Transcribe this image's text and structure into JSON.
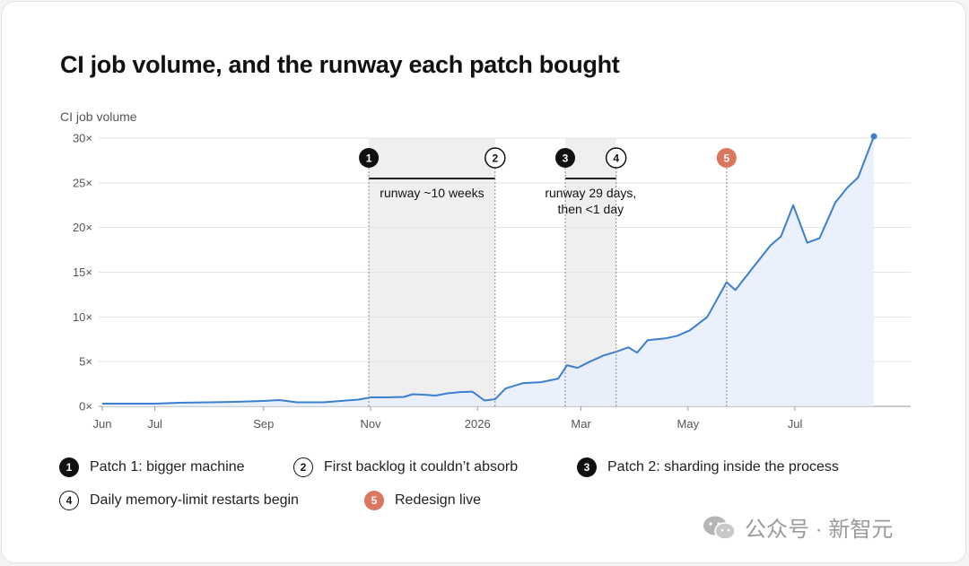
{
  "title": "CI job volume, and the runway each patch bought",
  "colors": {
    "line": "#3b7fd0",
    "area": "#e6effb",
    "shade": "#efefef",
    "accent": "#d9775f",
    "dark": "#111111"
  },
  "chart_data": {
    "type": "area",
    "ylabel": "CI job volume",
    "yticks": [
      "0×",
      "5×",
      "10×",
      "15×",
      "20×",
      "25×",
      "30×"
    ],
    "ylim": [
      0,
      30
    ],
    "xticks": [
      "Jun",
      "Jul",
      "Sep",
      "Nov",
      "2026",
      "Mar",
      "May",
      "Jul"
    ],
    "x_domain": [
      "2025-06-01",
      "2026-08-15"
    ],
    "grid": true,
    "series": [
      {
        "points": [
          [
            "2025-06-01",
            0.3
          ],
          [
            "2025-06-15",
            0.3
          ],
          [
            "2025-07-01",
            0.3
          ],
          [
            "2025-07-15",
            0.4
          ],
          [
            "2025-08-01",
            0.45
          ],
          [
            "2025-08-15",
            0.5
          ],
          [
            "2025-09-01",
            0.6
          ],
          [
            "2025-09-10",
            0.7
          ],
          [
            "2025-09-20",
            0.45
          ],
          [
            "2025-10-05",
            0.45
          ],
          [
            "2025-10-15",
            0.6
          ],
          [
            "2025-10-25",
            0.75
          ],
          [
            "2025-11-01",
            1.0
          ],
          [
            "2025-11-10",
            1.0
          ],
          [
            "2025-11-20",
            1.05
          ],
          [
            "2025-11-25",
            1.35
          ],
          [
            "2025-12-01",
            1.3
          ],
          [
            "2025-12-08",
            1.2
          ],
          [
            "2025-12-15",
            1.45
          ],
          [
            "2025-12-22",
            1.6
          ],
          [
            "2025-12-29",
            1.65
          ],
          [
            "2026-01-05",
            0.65
          ],
          [
            "2026-01-11",
            0.8
          ],
          [
            "2026-01-17",
            2.0
          ],
          [
            "2026-01-27",
            2.6
          ],
          [
            "2026-02-06",
            2.7
          ],
          [
            "2026-02-16",
            3.1
          ],
          [
            "2026-02-21",
            4.6
          ],
          [
            "2026-02-27",
            4.3
          ],
          [
            "2026-03-06",
            5.0
          ],
          [
            "2026-03-14",
            5.7
          ],
          [
            "2026-03-21",
            6.1
          ],
          [
            "2026-03-28",
            6.6
          ],
          [
            "2026-04-02",
            6.0
          ],
          [
            "2026-04-08",
            7.4
          ],
          [
            "2026-04-18",
            7.6
          ],
          [
            "2026-04-25",
            7.9
          ],
          [
            "2026-05-02",
            8.5
          ],
          [
            "2026-05-12",
            10.0
          ],
          [
            "2026-05-23",
            13.9
          ],
          [
            "2026-05-28",
            13.0
          ],
          [
            "2026-06-07",
            15.5
          ],
          [
            "2026-06-17",
            18.0
          ],
          [
            "2026-06-23",
            19.0
          ],
          [
            "2026-06-30",
            22.5
          ],
          [
            "2026-07-08",
            18.3
          ],
          [
            "2026-07-15",
            18.8
          ],
          [
            "2026-07-24",
            22.8
          ],
          [
            "2026-07-31",
            24.5
          ],
          [
            "2026-08-06",
            25.6
          ],
          [
            "2026-08-15",
            30.2
          ]
        ]
      }
    ],
    "markers": [
      {
        "num": "1",
        "date": "2025-10-31",
        "style": "filled",
        "label": "Patch 1: bigger machine"
      },
      {
        "num": "2",
        "date": "2026-01-11",
        "style": "outline",
        "label": "First backlog it couldn’t absorb"
      },
      {
        "num": "3",
        "date": "2026-02-20",
        "style": "filled",
        "label": "Patch 2: sharding inside the process"
      },
      {
        "num": "4",
        "date": "2026-03-21",
        "style": "outline",
        "label": "Daily memory-limit restarts begin"
      },
      {
        "num": "5",
        "date": "2026-05-23",
        "style": "accent",
        "label": "Redesign live"
      }
    ],
    "annotations": [
      {
        "lines": [
          "runway ~10 weeks"
        ]
      },
      {
        "lines": [
          "runway 29 days,",
          "then <1 day"
        ]
      }
    ]
  },
  "watermark": {
    "text": "公众号 · 新智元"
  }
}
